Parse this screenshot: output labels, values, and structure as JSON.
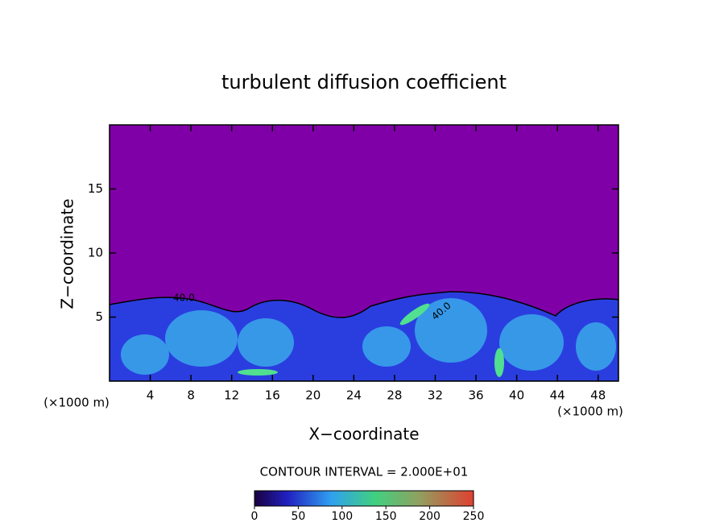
{
  "chart_data": {
    "type": "contour",
    "title": "turbulent diffusion coefficient",
    "x_label": "X−coordinate",
    "y_label": "Z−coordinate",
    "y_unit_label": "(×1000 m)",
    "x_unit_label": "(×1000 m)",
    "xlim": [
      0,
      50
    ],
    "xticks": [
      4,
      8,
      12,
      16,
      20,
      24,
      28,
      32,
      36,
      40,
      44,
      48
    ],
    "ylim": [
      0,
      20
    ],
    "yticks": [
      5,
      10,
      15
    ],
    "contour_labels": [
      "40.0",
      "40.0"
    ],
    "contour_interval_label": "CONTOUR INTERVAL = 2.000E+01",
    "colorbar": {
      "lim": [
        0,
        250
      ],
      "ticks": [
        0,
        50,
        100,
        150,
        200,
        250
      ]
    }
  }
}
